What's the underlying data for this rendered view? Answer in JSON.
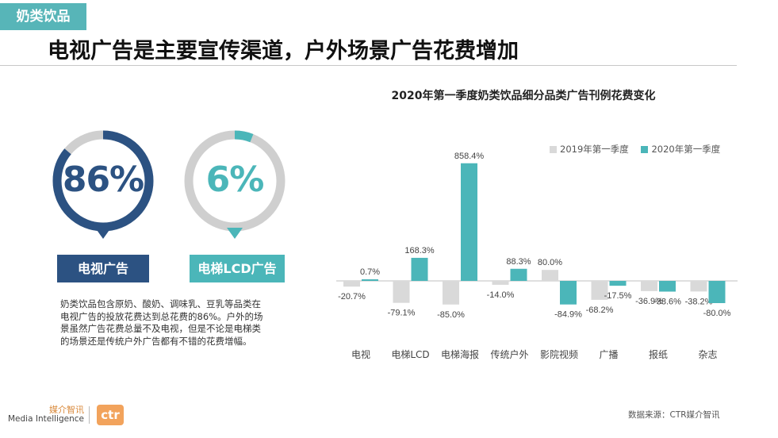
{
  "tag": "奶类饮品",
  "headline": "电视广告是主要宣传渠道，户外场景广告花费增加",
  "gauges": [
    {
      "value": "86%",
      "label": "电视广告",
      "fraction": 0.86,
      "color": "#2c5282",
      "track": "#cfcfcf"
    },
    {
      "value": "6%",
      "label": "电梯LCD广告",
      "fraction": 0.06,
      "color": "#4bb6b9",
      "track": "#cfcfcf"
    }
  ],
  "description": [
    "奶类饮品包含原奶、酸奶、调味乳、豆乳等品类在",
    "电视广告的投放花费达到总花费的86%。户外的场",
    "景虽然广告花费总量不及电视，但是不论是电梯类",
    "的场景还是传统户外广告都有不错的花费增幅。"
  ],
  "chart_data": {
    "type": "bar",
    "title": "2020年第一季度奶类饮品细分品类广告刊例花费变化",
    "categories": [
      "电视",
      "电梯LCD",
      "电梯海报",
      "传统户外",
      "影院视频",
      "广播",
      "报纸",
      "杂志"
    ],
    "series": [
      {
        "name": "2019年第一季度",
        "color": "#d9d9d9",
        "values": [
          -20.7,
          -79.1,
          -85.0,
          -14.0,
          80.0,
          -68.2,
          -36.9,
          -38.2
        ],
        "labels": [
          "-20.7%",
          "-79.1%",
          "-85.0%",
          "-14.0%",
          "80.0%",
          "-68.2%",
          "-36.9%",
          "-38.2%"
        ]
      },
      {
        "name": "2020年第一季度",
        "color": "#4bb6b9",
        "values": [
          0.7,
          168.3,
          858.4,
          88.3,
          -84.9,
          -17.5,
          -38.6,
          -80.0
        ],
        "labels": [
          "0.7%",
          "168.3%",
          "858.4%",
          "88.3%",
          "-84.9%",
          "-17.5%",
          "-38.6%",
          "-80.0%"
        ]
      }
    ],
    "legend_position": "top-right",
    "grid": false,
    "axis_line_color": "#bfbfbf"
  },
  "footer": {
    "logo_cn": "媒介智讯",
    "logo_en": "Media Intelligence",
    "logo_mark": "ctr",
    "source": "数据来源：CTR媒介智讯"
  }
}
